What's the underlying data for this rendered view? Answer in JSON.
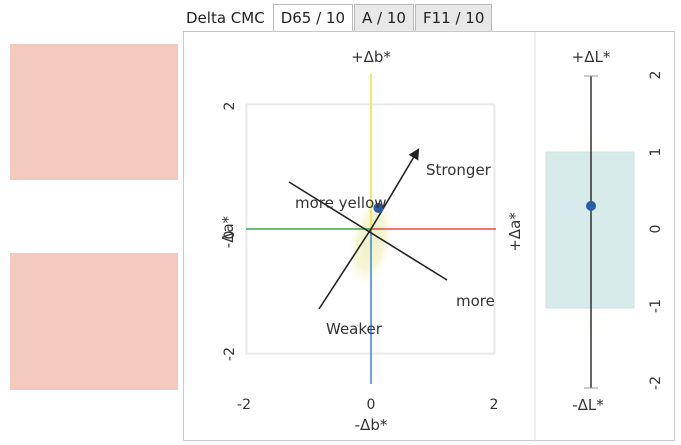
{
  "tabs": {
    "label": "Delta CMC",
    "items": [
      {
        "label": "D65 / 10",
        "active": true
      },
      {
        "label": "A / 10",
        "active": false
      },
      {
        "label": "F11 / 10",
        "active": false
      }
    ]
  },
  "swatches": {
    "top_color": "#f4c9c0",
    "bottom_color": "#f4c9c0"
  },
  "colors": {
    "yellow_axis": "#f2e24a",
    "green_axis": "#3aa84a",
    "red_axis": "#e84a4a",
    "blue_axis": "#4a8ad8",
    "point": "#2a5ca8",
    "tolerance_yellow": "#f7f3c8",
    "tolerance_blue": "#d7ecea"
  },
  "chart_data": [
    {
      "type": "scatter",
      "axis_labels": {
        "top": "+Δb*",
        "bottom": "-Δb*",
        "left": "-Δa*",
        "right": "+Δa*"
      },
      "xlim": [
        -2.6,
        2.6
      ],
      "ylim": [
        -2.6,
        2.6
      ],
      "x_ticks": [
        "-2",
        "0",
        "2"
      ],
      "y_ticks": [
        "2",
        "0",
        "-2"
      ],
      "grid": true,
      "point": {
        "x": 0.12,
        "y": 0.34
      },
      "annotations": {
        "stronger": "Stronger",
        "weaker": "Weaker",
        "more_yellow": "more yellow",
        "more": "more"
      }
    },
    {
      "type": "scatter",
      "axis_labels": {
        "top": "+ΔL*",
        "bottom": "-ΔL*"
      },
      "ylim": [
        -2.6,
        2.6
      ],
      "y_ticks": [
        "2",
        "1",
        "0",
        "-1",
        "-2"
      ],
      "point": {
        "y": 0.3
      }
    }
  ]
}
